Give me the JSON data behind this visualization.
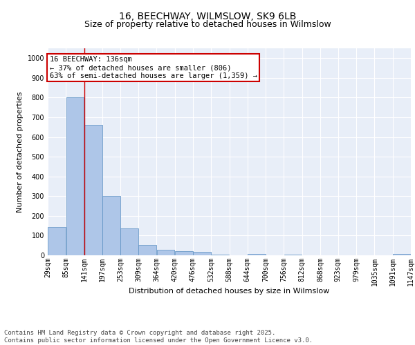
{
  "title_line1": "16, BEECHWAY, WILMSLOW, SK9 6LB",
  "title_line2": "Size of property relative to detached houses in Wilmslow",
  "xlabel": "Distribution of detached houses by size in Wilmslow",
  "ylabel": "Number of detached properties",
  "bin_edges": [
    29,
    85,
    141,
    197,
    253,
    309,
    364,
    420,
    476,
    532,
    588,
    644,
    700,
    756,
    812,
    868,
    923,
    979,
    1035,
    1091,
    1147
  ],
  "bin_labels": [
    "29sqm",
    "85sqm",
    "141sqm",
    "197sqm",
    "253sqm",
    "309sqm",
    "364sqm",
    "420sqm",
    "476sqm",
    "532sqm",
    "588sqm",
    "644sqm",
    "700sqm",
    "756sqm",
    "812sqm",
    "868sqm",
    "923sqm",
    "979sqm",
    "1035sqm",
    "1091sqm",
    "1147sqm"
  ],
  "bar_heights": [
    145,
    800,
    662,
    300,
    137,
    52,
    28,
    20,
    19,
    5,
    0,
    8,
    0,
    2,
    0,
    0,
    0,
    0,
    0,
    8
  ],
  "bar_color": "#aec6e8",
  "bar_edge_color": "#5a8fc2",
  "vline_x": 141,
  "vline_color": "#cc0000",
  "annotation_text": "16 BEECHWAY: 136sqm\n← 37% of detached houses are smaller (806)\n63% of semi-detached houses are larger (1,359) →",
  "annotation_box_color": "#cc0000",
  "ylim": [
    0,
    1050
  ],
  "yticks": [
    0,
    100,
    200,
    300,
    400,
    500,
    600,
    700,
    800,
    900,
    1000
  ],
  "background_color": "#e8eef8",
  "grid_color": "#ffffff",
  "footer_text": "Contains HM Land Registry data © Crown copyright and database right 2025.\nContains public sector information licensed under the Open Government Licence v3.0.",
  "title_fontsize": 10,
  "subtitle_fontsize": 9,
  "axis_label_fontsize": 8,
  "tick_fontsize": 7,
  "annotation_fontsize": 7.5,
  "footer_fontsize": 6.5
}
